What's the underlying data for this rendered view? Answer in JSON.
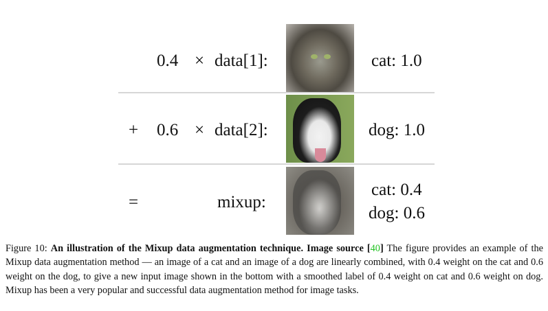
{
  "figure": {
    "rows": [
      {
        "op": "",
        "weight": "0.4",
        "times": "×",
        "source": "data[1]:",
        "image": "cat-photo",
        "label": [
          "cat: 1.0"
        ]
      },
      {
        "op": "+",
        "weight": "0.6",
        "times": "×",
        "source": "data[2]:",
        "image": "dog-photo",
        "label": [
          "dog: 1.0"
        ]
      },
      {
        "op": "=",
        "weight": "",
        "times": "",
        "source": "mixup:",
        "image": "mixed-cat-dog-photo",
        "label": [
          "cat: 0.4",
          "dog: 0.6"
        ]
      }
    ]
  },
  "caption": {
    "prefix": "Figure 10:",
    "bold": "An illustration of the Mixup data augmentation technique. Image source [",
    "ref": "40",
    "bold_end": "]",
    "text": " The figure provides an example of the Mixup data augmentation method — an image of a cat and an image of a dog are linearly combined, with 0.4 weight on the cat and 0.6 weight on the dog, to give a new input image shown in the bottom with a smoothed label of 0.4 weight on cat and 0.6 weight on dog. Mixup has been a very popular and successful data augmentation method for image tasks."
  },
  "colors": {
    "ref_link": "#22c322",
    "divider": "#d6d6d6"
  }
}
